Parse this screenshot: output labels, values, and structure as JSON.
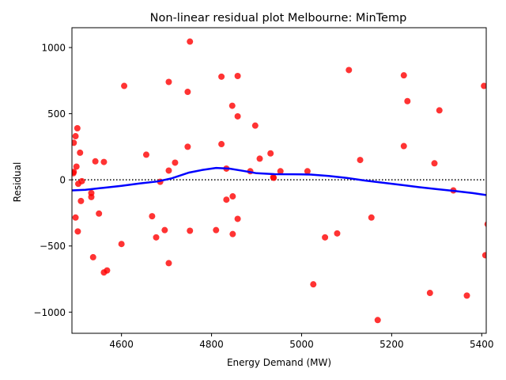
{
  "chart_data": {
    "type": "scatter",
    "title": "Non-linear residual plot Melbourne: MinTemp",
    "xlabel": "Energy Demand (MW)",
    "ylabel": "Residual",
    "xlim": [
      4490,
      5410
    ],
    "ylim": [
      -1160,
      1150
    ],
    "xticks": [
      {
        "value": 4600,
        "label": "4600"
      },
      {
        "value": 4800,
        "label": "4800"
      },
      {
        "value": 5000,
        "label": "5000"
      },
      {
        "value": 5200,
        "label": "5200"
      },
      {
        "value": 5400,
        "label": "5400"
      }
    ],
    "yticks": [
      {
        "value": -1000,
        "label": "−1000"
      },
      {
        "value": -500,
        "label": "−500"
      },
      {
        "value": 0,
        "label": "0"
      },
      {
        "value": 500,
        "label": "500"
      },
      {
        "value": 1000,
        "label": "1000"
      }
    ],
    "zero_line": {
      "y": 0,
      "style": "dotted",
      "color": "#000000"
    },
    "grid": false,
    "legend": null,
    "colors": {
      "points": "#ff0000",
      "smooth": "#0000ff"
    },
    "series": [
      {
        "kind": "points",
        "points": [
          [
            4493,
            50
          ],
          [
            4494,
            280
          ],
          [
            4494,
            60
          ],
          [
            4498,
            330
          ],
          [
            4498,
            -285
          ],
          [
            4500,
            100
          ],
          [
            4502,
            390
          ],
          [
            4503,
            -390
          ],
          [
            4504,
            -30
          ],
          [
            4508,
            205
          ],
          [
            4510,
            -160
          ],
          [
            4512,
            -10
          ],
          [
            4533,
            -100
          ],
          [
            4533,
            -130
          ],
          [
            4537,
            -585
          ],
          [
            4542,
            140
          ],
          [
            4550,
            -255
          ],
          [
            4561,
            135
          ],
          [
            4561,
            -700
          ],
          [
            4568,
            -685
          ],
          [
            4600,
            -485
          ],
          [
            4606,
            710
          ],
          [
            4655,
            190
          ],
          [
            4668,
            -275
          ],
          [
            4677,
            -435
          ],
          [
            4686,
            -15
          ],
          [
            4696,
            -380
          ],
          [
            4705,
            70
          ],
          [
            4705,
            740
          ],
          [
            4705,
            -630
          ],
          [
            4719,
            130
          ],
          [
            4747,
            250
          ],
          [
            4747,
            665
          ],
          [
            4752,
            1045
          ],
          [
            4752,
            -385
          ],
          [
            4810,
            -380
          ],
          [
            4822,
            780
          ],
          [
            4822,
            270
          ],
          [
            4833,
            85
          ],
          [
            4833,
            -150
          ],
          [
            4846,
            560
          ],
          [
            4847,
            -125
          ],
          [
            4847,
            -410
          ],
          [
            4858,
            480
          ],
          [
            4858,
            785
          ],
          [
            4858,
            -295
          ],
          [
            4886,
            65
          ],
          [
            4897,
            410
          ],
          [
            4907,
            160
          ],
          [
            4931,
            200
          ],
          [
            4937,
            20
          ],
          [
            4938,
            15
          ],
          [
            4953,
            65
          ],
          [
            5013,
            65
          ],
          [
            5026,
            -790
          ],
          [
            5052,
            -435
          ],
          [
            5079,
            -405
          ],
          [
            5105,
            830
          ],
          [
            5130,
            150
          ],
          [
            5155,
            -285
          ],
          [
            5169,
            -1060
          ],
          [
            5227,
            790
          ],
          [
            5227,
            255
          ],
          [
            5235,
            595
          ],
          [
            5285,
            -855
          ],
          [
            5295,
            125
          ],
          [
            5306,
            525
          ],
          [
            5337,
            -80
          ],
          [
            5367,
            -875
          ],
          [
            5405,
            710
          ],
          [
            5408,
            -570
          ],
          [
            5413,
            -335
          ]
        ]
      },
      {
        "kind": "smooth",
        "points": [
          [
            4490,
            -80
          ],
          [
            4520,
            -75
          ],
          [
            4560,
            -60
          ],
          [
            4600,
            -45
          ],
          [
            4640,
            -28
          ],
          [
            4680,
            -12
          ],
          [
            4710,
            10
          ],
          [
            4750,
            55
          ],
          [
            4780,
            75
          ],
          [
            4810,
            90
          ],
          [
            4840,
            85
          ],
          [
            4870,
            68
          ],
          [
            4900,
            50
          ],
          [
            4940,
            43
          ],
          [
            4980,
            42
          ],
          [
            5020,
            40
          ],
          [
            5060,
            30
          ],
          [
            5100,
            15
          ],
          [
            5140,
            -5
          ],
          [
            5180,
            -22
          ],
          [
            5220,
            -38
          ],
          [
            5260,
            -55
          ],
          [
            5300,
            -70
          ],
          [
            5340,
            -84
          ],
          [
            5380,
            -100
          ],
          [
            5410,
            -115
          ]
        ]
      }
    ]
  }
}
